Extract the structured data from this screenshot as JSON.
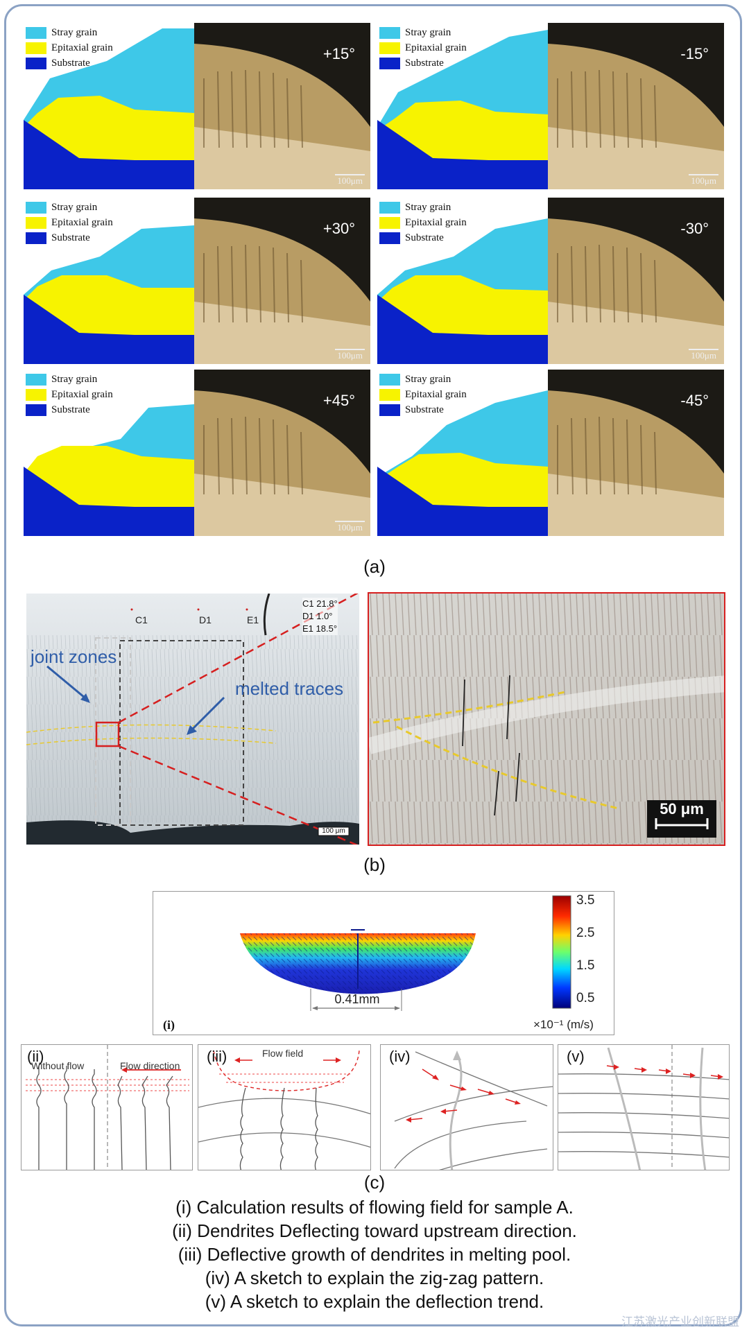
{
  "legend": {
    "stray": {
      "label": "Stray grain",
      "color": "#3ec8e8"
    },
    "epitaxial": {
      "label": "Epitaxial grain",
      "color": "#f7f300"
    },
    "substrate": {
      "label": "Substrate",
      "color": "#0a22c8"
    }
  },
  "panels_a": [
    {
      "angle": "+15°",
      "scale": "100μm"
    },
    {
      "angle": "-15°",
      "scale": "100μm"
    },
    {
      "angle": "+30°",
      "scale": "100μm"
    },
    {
      "angle": "-30°",
      "scale": "100μm"
    },
    {
      "angle": "+45°",
      "scale": "100μm"
    },
    {
      "angle": "-45°",
      "scale": ""
    }
  ],
  "caption_a": "(a)",
  "panel_b": {
    "point_labels": [
      "C1",
      "D1",
      "E1"
    ],
    "angles": [
      "C1  21.8°",
      "D1   1.0°",
      "E1  18.5°"
    ],
    "joint_zones": "joint zones",
    "melted_traces": "melted traces",
    "scale_left": "100 μm",
    "scale_right": "50 μm"
  },
  "caption_b": "(b)",
  "panel_c": {
    "colorbar_ticks": [
      "3.5",
      "2.5",
      "1.5",
      "0.5"
    ],
    "colorbar_unit": "×10⁻¹ (m/s)",
    "width_label": "0.41mm",
    "label_i": "(i)",
    "label_ii": "(ii)",
    "without_flow": "Without flow",
    "flow_direction": "Flow direction",
    "label_iii": "(iii)",
    "flow_field": "Flow field",
    "label_iv": "(iv)",
    "label_v": "(v)"
  },
  "caption_c": "(c)",
  "caption_lines": [
    "(i) Calculation results of flowing field for sample A.",
    "(ii) Dendrites Deflecting toward upstream direction.",
    "(iii) Deflective growth of dendrites in melting pool.",
    "(iv) A sketch to explain the zig-zag pattern.",
    "(v) A sketch to explain the deflection trend."
  ],
  "watermark": "江苏激光产业创新联盟"
}
